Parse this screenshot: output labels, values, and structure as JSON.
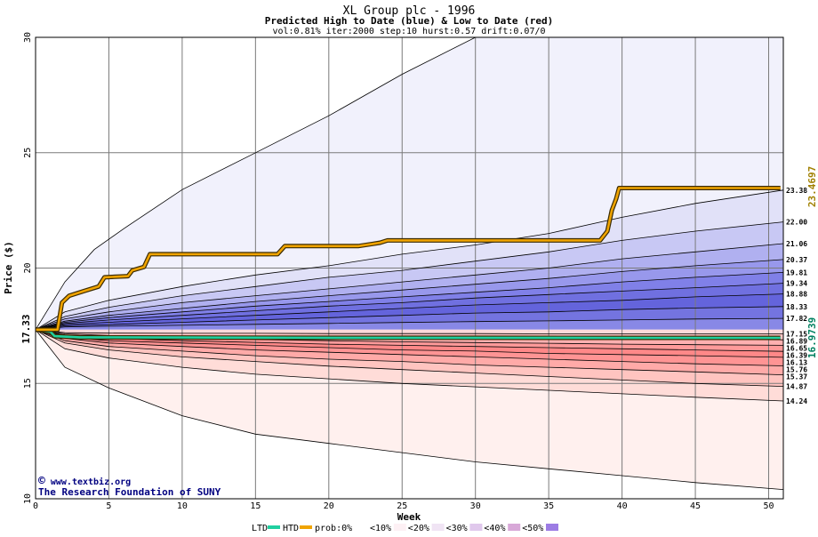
{
  "chart_data": {
    "type": "area",
    "title": "XL Group plc - 1996",
    "subtitle": "Predicted High to Date (blue) &  Low to Date (red)",
    "params": "vol:0.81% iter:2000 step:10 hurst:0.57 drift:0.07/0",
    "xlabel": "Week",
    "ylabel": "Price ($)",
    "xlim": [
      0,
      51
    ],
    "ylim": [
      10,
      30
    ],
    "x_ticks": [
      "0",
      "5",
      "10",
      "15",
      "20",
      "25",
      "30",
      "35",
      "40",
      "45",
      "50"
    ],
    "y_ticks": [
      "10",
      "15",
      "20",
      "25",
      "30"
    ],
    "grid": true,
    "start_price": 17.33,
    "start_label": "17.33",
    "high_final_label": "23.4697",
    "low_final_label": "16.9739",
    "band_end_labels": [
      "23.38",
      "22.00",
      "21.06",
      "20.37",
      "19.81",
      "19.34",
      "18.88",
      "18.33",
      "17.82",
      "17.15",
      "16.89",
      "16.65",
      "16.39",
      "16.13",
      "15.76",
      "15.37",
      "14.87",
      "14.24"
    ],
    "high_bands": [
      {
        "prob": "0%",
        "x": [
          0,
          2,
          4,
          6,
          10,
          15,
          20,
          25,
          30,
          35,
          40,
          45,
          51
        ],
        "y": [
          17.33,
          19.4,
          20.8,
          21.7,
          23.4,
          25.0,
          26.6,
          28.4,
          30.0,
          30.0,
          30.0,
          30.0,
          30.0
        ]
      },
      {
        "prob": "10%",
        "x": [
          0,
          2,
          5,
          10,
          15,
          20,
          25,
          30,
          35,
          40,
          45,
          51
        ],
        "y": [
          17.33,
          18.1,
          18.6,
          19.2,
          19.7,
          20.1,
          20.6,
          21.0,
          21.5,
          22.2,
          22.8,
          23.38
        ]
      },
      {
        "prob": "20%",
        "x": [
          0,
          2,
          5,
          10,
          15,
          20,
          25,
          30,
          35,
          40,
          45,
          51
        ],
        "y": [
          17.33,
          17.9,
          18.3,
          18.8,
          19.2,
          19.6,
          19.9,
          20.3,
          20.7,
          21.2,
          21.6,
          22.0
        ]
      },
      {
        "prob": "30%",
        "x": [
          0,
          2,
          5,
          10,
          15,
          20,
          25,
          30,
          35,
          40,
          45,
          51
        ],
        "y": [
          17.33,
          17.8,
          18.1,
          18.5,
          18.8,
          19.1,
          19.4,
          19.7,
          20.0,
          20.4,
          20.7,
          21.06
        ]
      },
      {
        "prob": "40%",
        "x": [
          0,
          2,
          5,
          10,
          15,
          20,
          25,
          30,
          35,
          40,
          45,
          51
        ],
        "y": [
          17.33,
          17.7,
          17.95,
          18.25,
          18.55,
          18.8,
          19.05,
          19.3,
          19.55,
          19.85,
          20.1,
          20.37
        ]
      },
      {
        "prob": "50%",
        "x": [
          0,
          2,
          5,
          10,
          15,
          20,
          25,
          30,
          35,
          40,
          45,
          51
        ],
        "y": [
          17.33,
          17.65,
          17.85,
          18.1,
          18.35,
          18.55,
          18.75,
          18.95,
          19.15,
          19.4,
          19.6,
          19.81
        ]
      },
      {
        "prob": "60%",
        "x": [
          0,
          2,
          5,
          10,
          15,
          20,
          25,
          30,
          35,
          40,
          45,
          51
        ],
        "y": [
          17.33,
          17.6,
          17.75,
          17.95,
          18.15,
          18.35,
          18.5,
          18.7,
          18.85,
          19.0,
          19.15,
          19.34
        ]
      },
      {
        "prob": "70%",
        "x": [
          0,
          2,
          5,
          10,
          15,
          20,
          25,
          30,
          35,
          40,
          45,
          51
        ],
        "y": [
          17.33,
          17.55,
          17.65,
          17.8,
          17.95,
          18.1,
          18.25,
          18.4,
          18.5,
          18.6,
          18.75,
          18.88
        ]
      },
      {
        "prob": "80%",
        "x": [
          0,
          2,
          5,
          10,
          15,
          20,
          25,
          30,
          35,
          40,
          45,
          51
        ],
        "y": [
          17.33,
          17.5,
          17.55,
          17.65,
          17.75,
          17.85,
          17.95,
          18.05,
          18.1,
          18.2,
          18.27,
          18.33
        ]
      },
      {
        "prob": "90%",
        "x": [
          0,
          2,
          5,
          10,
          15,
          20,
          25,
          30,
          35,
          40,
          45,
          51
        ],
        "y": [
          17.33,
          17.45,
          17.48,
          17.52,
          17.56,
          17.6,
          17.64,
          17.68,
          17.71,
          17.75,
          17.79,
          17.82
        ]
      }
    ],
    "low_bands": [
      {
        "prob": "0%",
        "x": [
          0,
          2,
          5,
          10,
          15,
          20,
          25,
          30,
          35,
          40,
          45,
          51
        ],
        "y": [
          17.33,
          15.7,
          14.8,
          13.6,
          12.8,
          12.4,
          12.0,
          11.6,
          11.3,
          11.0,
          10.7,
          10.4
        ]
      },
      {
        "prob": "10%",
        "x": [
          0,
          2,
          5,
          10,
          15,
          20,
          25,
          30,
          35,
          40,
          45,
          51
        ],
        "y": [
          17.33,
          16.5,
          16.1,
          15.7,
          15.4,
          15.2,
          15.0,
          14.85,
          14.7,
          14.55,
          14.4,
          14.24
        ]
      },
      {
        "prob": "20%",
        "x": [
          0,
          2,
          5,
          10,
          15,
          20,
          25,
          30,
          35,
          40,
          45,
          51
        ],
        "y": [
          17.33,
          16.75,
          16.45,
          16.15,
          15.95,
          15.75,
          15.6,
          15.45,
          15.3,
          15.15,
          15.0,
          14.87
        ]
      },
      {
        "prob": "30%",
        "x": [
          0,
          2,
          5,
          10,
          15,
          20,
          25,
          30,
          35,
          40,
          45,
          51
        ],
        "y": [
          17.33,
          16.85,
          16.6,
          16.4,
          16.2,
          16.05,
          15.95,
          15.8,
          15.7,
          15.6,
          15.5,
          15.37
        ]
      },
      {
        "prob": "40%",
        "x": [
          0,
          2,
          5,
          10,
          15,
          20,
          25,
          30,
          35,
          40,
          45,
          51
        ],
        "y": [
          17.33,
          16.95,
          16.75,
          16.6,
          16.45,
          16.35,
          16.25,
          16.15,
          16.05,
          15.95,
          15.85,
          15.76
        ]
      },
      {
        "prob": "50%",
        "x": [
          0,
          2,
          5,
          10,
          15,
          20,
          25,
          30,
          35,
          40,
          45,
          51
        ],
        "y": [
          17.33,
          17.0,
          16.85,
          16.75,
          16.65,
          16.55,
          16.45,
          16.4,
          16.3,
          16.25,
          16.2,
          16.13
        ]
      },
      {
        "prob": "60%",
        "x": [
          0,
          2,
          5,
          10,
          15,
          20,
          25,
          30,
          35,
          40,
          45,
          51
        ],
        "y": [
          17.33,
          17.05,
          16.95,
          16.85,
          16.78,
          16.7,
          16.65,
          16.6,
          16.55,
          16.5,
          16.45,
          16.39
        ]
      },
      {
        "prob": "70%",
        "x": [
          0,
          2,
          5,
          10,
          15,
          20,
          25,
          30,
          35,
          40,
          45,
          51
        ],
        "y": [
          17.33,
          17.1,
          17.02,
          16.95,
          16.9,
          16.85,
          16.8,
          16.77,
          16.74,
          16.7,
          16.68,
          16.65
        ]
      },
      {
        "prob": "80%",
        "x": [
          0,
          2,
          5,
          10,
          15,
          20,
          25,
          30,
          35,
          40,
          45,
          51
        ],
        "y": [
          17.33,
          17.15,
          17.08,
          17.04,
          17.0,
          16.98,
          16.96,
          16.94,
          16.93,
          16.91,
          16.9,
          16.89
        ]
      },
      {
        "prob": "90%",
        "x": [
          0,
          2,
          5,
          10,
          15,
          20,
          25,
          30,
          35,
          40,
          45,
          51
        ],
        "y": [
          17.33,
          17.2,
          17.18,
          17.17,
          17.17,
          17.16,
          17.16,
          17.16,
          17.15,
          17.15,
          17.15,
          17.15
        ]
      }
    ],
    "htd_series": {
      "name": "HTD",
      "x": [
        0,
        1.5,
        1.8,
        2.3,
        3.3,
        4.3,
        4.7,
        6.3,
        6.6,
        7.4,
        7.8,
        16.5,
        17,
        22,
        23,
        23.5,
        24,
        38.5,
        39,
        39.3,
        39.6,
        39.8,
        50.8
      ],
      "y": [
        17.33,
        17.33,
        18.5,
        18.8,
        19.0,
        19.2,
        19.6,
        19.65,
        19.9,
        20.05,
        20.6,
        20.6,
        20.95,
        20.95,
        21.05,
        21.1,
        21.2,
        21.2,
        21.6,
        22.5,
        23.0,
        23.47,
        23.47
      ]
    },
    "ltd_series": {
      "name": "LTD",
      "x": [
        0,
        1,
        1.3,
        3,
        10,
        20,
        30,
        40,
        50.8
      ],
      "y": [
        17.33,
        17.25,
        17.05,
        17.0,
        16.99,
        16.98,
        16.98,
        16.974,
        16.974
      ]
    },
    "legend": {
      "position": "bottom",
      "ltd_label": "LTD",
      "htd_label": "HTD",
      "prob_label": "prob:0%",
      "items": [
        "<10%",
        "<20%",
        "<30%",
        "<40%",
        "<50%"
      ]
    },
    "credit_line1": "www.textbiz.org",
    "credit_line2": "The Research Foundation of SUNY",
    "colors": {
      "high_band_fills": [
        "#f1f1fc",
        "#e1e1f8",
        "#c8c8f4",
        "#b0b0f0",
        "#9898ec",
        "#8080e8",
        "#7070e0",
        "#6464dc",
        "#7474e0",
        "#8888e6"
      ],
      "low_band_fills": [
        "#fff0ee",
        "#ffdcd8",
        "#ffc4c0",
        "#ffaaa8",
        "#ff9494",
        "#ff8888",
        "#ff9a9a",
        "#ffb0b0",
        "#ffc6c6",
        "#ffdada"
      ],
      "htd": "#f0a400",
      "ltd": "#20d0a0",
      "high_label": "#a08000",
      "low_label": "#008060",
      "credit": "#000080",
      "legend_swatches": [
        "#ffffff",
        "#fdf0f4",
        "#f0e4f4",
        "#e0c8ec",
        "#d8a8d8",
        "#9c7ce4"
      ]
    }
  }
}
